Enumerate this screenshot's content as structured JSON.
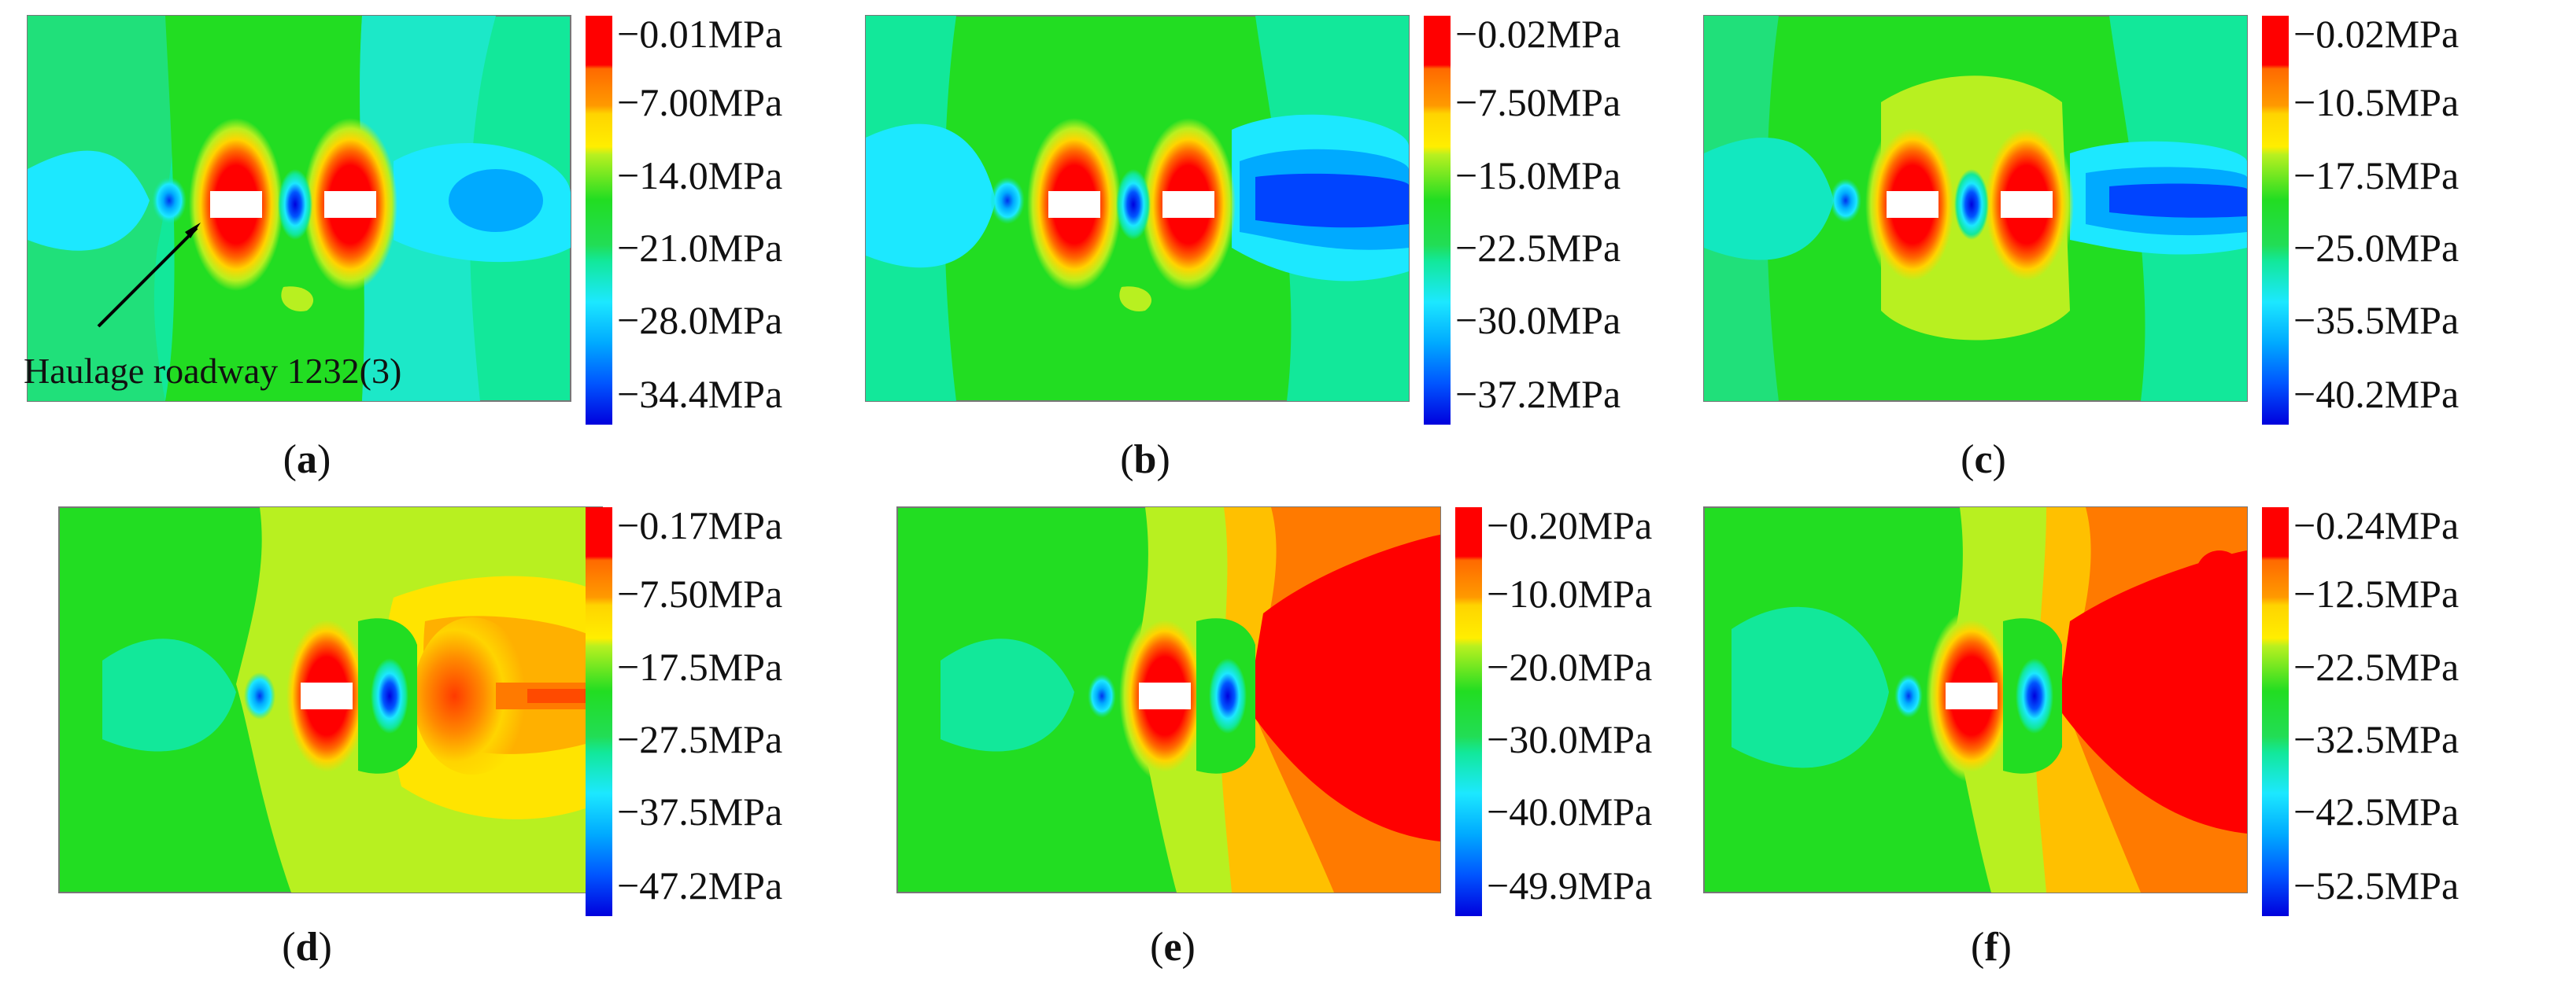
{
  "annotation": "Haulage roadway 1232(3)",
  "colors": {
    "red": "#ff0000",
    "orange": "#ff7a00",
    "yellow": "#ffd400",
    "yellowgreen": "#b4f020",
    "green": "#22dd22",
    "teal": "#12e89a",
    "cyan": "#1ce8ff",
    "lightblue": "#00aaff",
    "blue": "#0044ff",
    "darkblue": "#0000dd"
  },
  "panels": [
    {
      "caption_letter": "a",
      "labels": [
        "−0.01MPa",
        "−7.00MPa",
        "−14.0MPa",
        "−21.0MPa",
        "−28.0MPa",
        "−34.4MPa"
      ]
    },
    {
      "caption_letter": "b",
      "labels": [
        "−0.02MPa",
        "−7.50MPa",
        "−15.0MPa",
        "−22.5MPa",
        "−30.0MPa",
        "−37.2MPa"
      ]
    },
    {
      "caption_letter": "c",
      "labels": [
        "−0.02MPa",
        "−10.5MPa",
        "−17.5MPa",
        "−25.0MPa",
        "−35.5MPa",
        "−40.2MPa"
      ]
    },
    {
      "caption_letter": "d",
      "labels": [
        "−0.17MPa",
        "−7.50MPa",
        "−17.5MPa",
        "−27.5MPa",
        "−37.5MPa",
        "−47.2MPa"
      ]
    },
    {
      "caption_letter": "e",
      "labels": [
        "−0.20MPa",
        "−10.0MPa",
        "−20.0MPa",
        "−30.0MPa",
        "−40.0MPa",
        "−49.9MPa"
      ]
    },
    {
      "caption_letter": "f",
      "labels": [
        "−0.24MPa",
        "−12.5MPa",
        "−22.5MPa",
        "−32.5MPa",
        "−42.5MPa",
        "−52.5MPa"
      ]
    }
  ]
}
